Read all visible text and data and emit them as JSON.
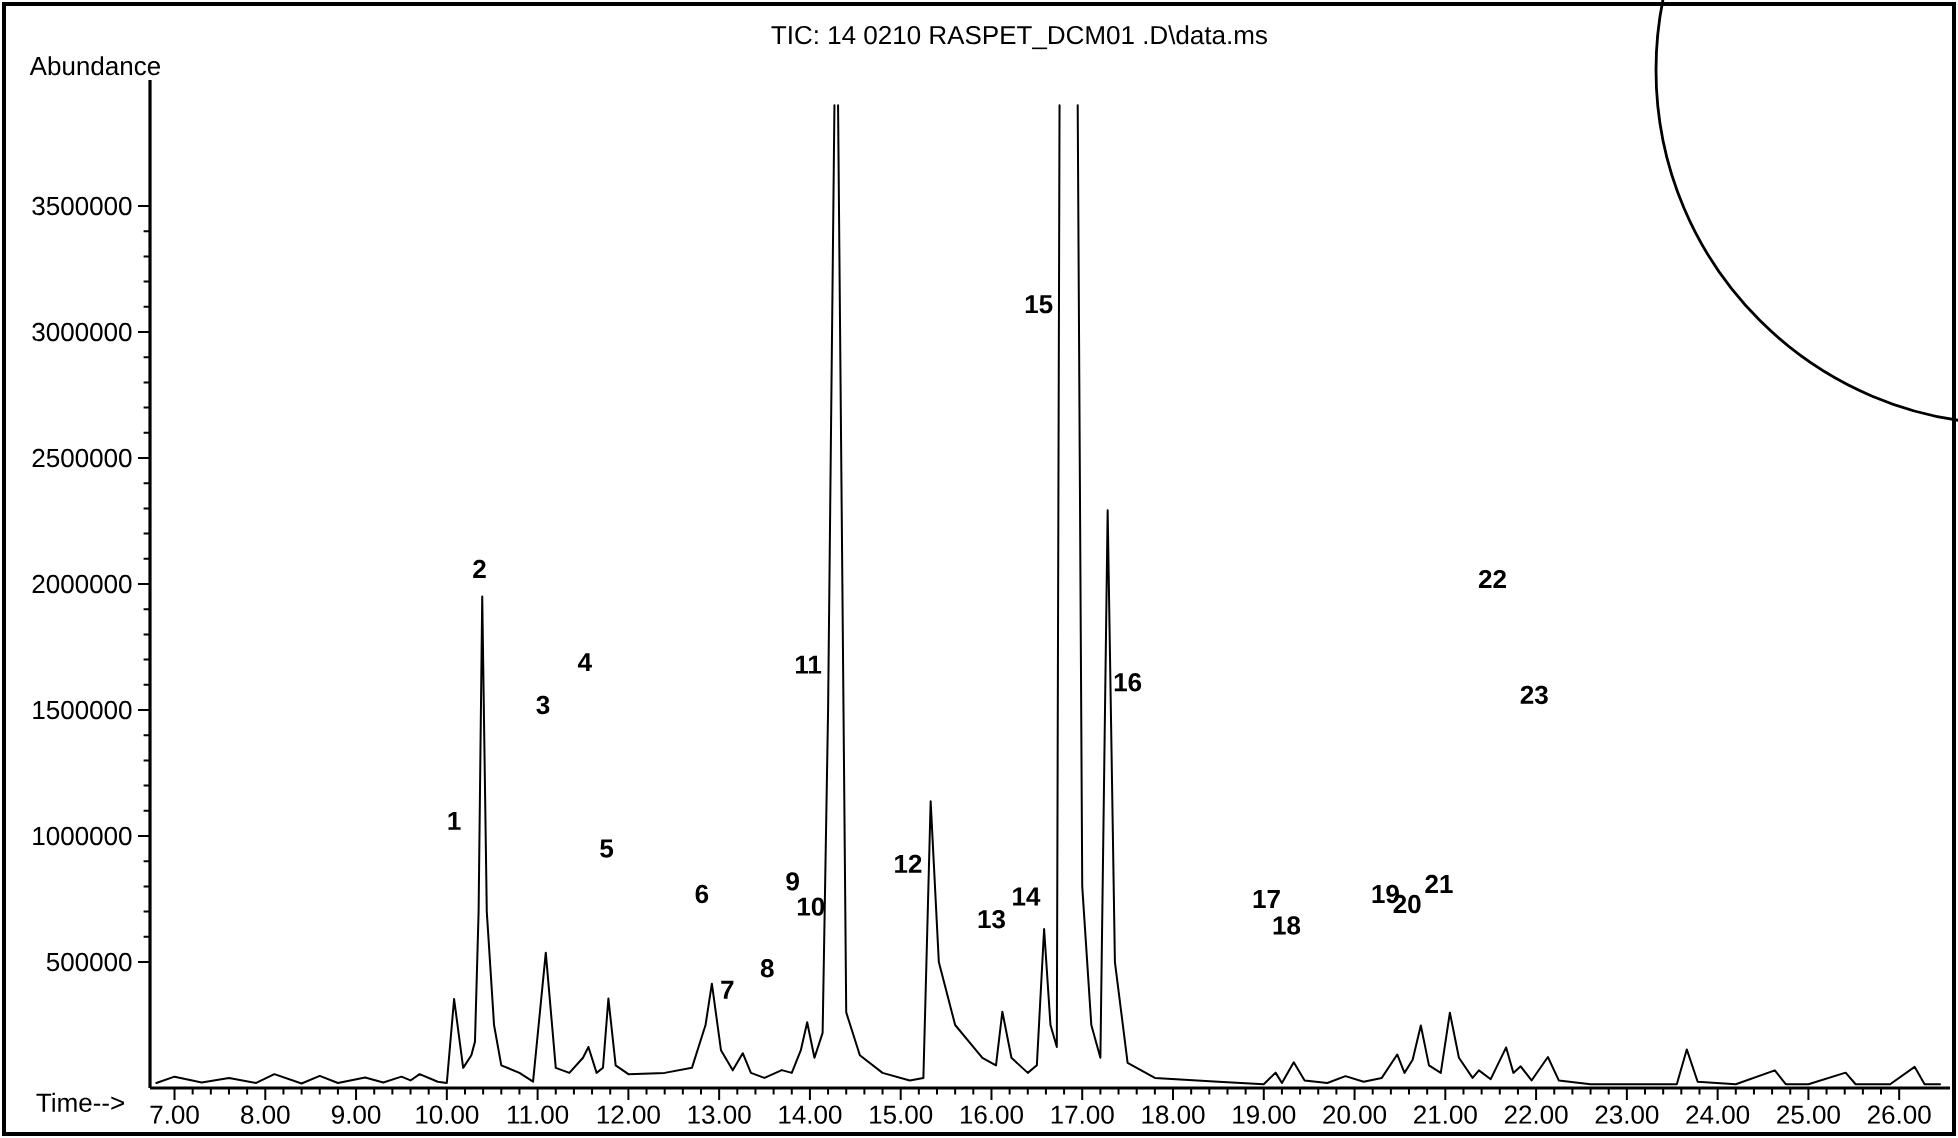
{
  "chart_data": {
    "type": "line",
    "title": "TIC: 14 0210 RASPET_DCM01 .D\\data.ms",
    "xlabel": "Time-->",
    "ylabel": "Abundance",
    "xlim": [
      6.73,
      26.56
    ],
    "ylim": [
      0,
      4000000
    ],
    "xticks": [
      {
        "value": 7,
        "label": "7.00"
      },
      {
        "value": 8,
        "label": "8.00"
      },
      {
        "value": 9,
        "label": "9.00"
      },
      {
        "value": 10,
        "label": "10.00"
      },
      {
        "value": 11,
        "label": "11.00"
      },
      {
        "value": 12,
        "label": "12.00"
      },
      {
        "value": 13,
        "label": "13.00"
      },
      {
        "value": 14,
        "label": "14.00"
      },
      {
        "value": 15,
        "label": "15.00"
      },
      {
        "value": 16,
        "label": "16.00"
      },
      {
        "value": 17,
        "label": "17.00"
      },
      {
        "value": 18,
        "label": "18.00"
      },
      {
        "value": 19,
        "label": "19.00"
      },
      {
        "value": 20,
        "label": "20.00"
      },
      {
        "value": 21,
        "label": "21.00"
      },
      {
        "value": 22,
        "label": "22.00"
      },
      {
        "value": 23,
        "label": "23.00"
      },
      {
        "value": 24,
        "label": "24.00"
      },
      {
        "value": 25,
        "label": "25.00"
      },
      {
        "value": 26,
        "label": "26.00"
      }
    ],
    "yticks": [
      500000,
      1000000,
      1500000,
      2000000,
      2500000,
      3000000,
      3500000
    ],
    "grid": false,
    "marker": "none",
    "line_style": "solid",
    "series": [
      {
        "color": "#000000",
        "x": [
          6.8,
          7.0,
          7.3,
          7.6,
          7.9,
          8.1,
          8.4,
          8.6,
          8.8,
          9.1,
          9.3,
          9.5,
          9.6,
          9.7,
          9.9,
          10.0,
          10.08,
          10.18,
          10.27,
          10.31,
          10.35,
          10.39,
          10.44,
          10.52,
          10.6,
          10.8,
          10.95,
          11.09,
          11.2,
          11.35,
          11.5,
          11.56,
          11.65,
          11.72,
          11.78,
          11.86,
          12.0,
          12.4,
          12.7,
          12.85,
          12.92,
          13.02,
          13.15,
          13.26,
          13.35,
          13.5,
          13.69,
          13.8,
          13.9,
          13.97,
          14.05,
          14.14,
          14.2,
          14.27,
          14.29,
          14.31,
          14.4,
          14.55,
          14.8,
          15.1,
          15.25,
          15.33,
          15.42,
          15.6,
          15.9,
          16.05,
          16.12,
          16.22,
          16.4,
          16.5,
          16.58,
          16.65,
          16.72,
          16.75,
          16.85,
          16.95,
          17.0,
          17.1,
          17.2,
          17.28,
          17.36,
          17.5,
          17.8,
          18.5,
          19.0,
          19.13,
          19.2,
          19.33,
          19.45,
          19.7,
          19.9,
          20.1,
          20.3,
          20.47,
          20.55,
          20.64,
          20.73,
          20.82,
          20.95,
          21.05,
          21.15,
          21.3,
          21.37,
          21.5,
          21.67,
          21.75,
          21.83,
          21.95,
          22.13,
          22.25,
          22.6,
          23.2,
          23.55,
          23.66,
          23.78,
          24.2,
          24.63,
          24.75,
          25.0,
          25.41,
          25.52,
          25.9,
          26.17,
          26.28,
          26.45
        ],
        "values": [
          20000,
          45000,
          22000,
          40000,
          20000,
          55000,
          18000,
          48000,
          20000,
          42000,
          22000,
          45000,
          30000,
          55000,
          25000,
          20000,
          353000,
          80000,
          130000,
          184000,
          700000,
          1950000,
          700000,
          250000,
          90000,
          60000,
          25000,
          537000,
          80000,
          60000,
          120000,
          163000,
          60000,
          80000,
          355000,
          90000,
          55000,
          60000,
          80000,
          250000,
          414000,
          150000,
          70000,
          138000,
          60000,
          40000,
          71000,
          60000,
          150000,
          261000,
          120000,
          219000,
          1500000,
          3900000,
          null,
          3900000,
          300000,
          130000,
          60000,
          30000,
          40000,
          1138000,
          500000,
          250000,
          120000,
          90000,
          303000,
          120000,
          60000,
          90000,
          631000,
          250000,
          163000,
          3900000,
          null,
          3900000,
          800000,
          250000,
          120000,
          2293000,
          500000,
          100000,
          40000,
          25000,
          15000,
          61000,
          20000,
          102000,
          30000,
          20000,
          47000,
          25000,
          40000,
          133000,
          60000,
          112000,
          248000,
          90000,
          60000,
          299000,
          120000,
          40000,
          70000,
          35000,
          161000,
          60000,
          86000,
          30000,
          123000,
          30000,
          15000,
          15000,
          15000,
          153000,
          25000,
          15000,
          70000,
          15000,
          15000,
          61000,
          15000,
          15000,
          84000,
          15000,
          15000
        ]
      }
    ],
    "annotations": [
      "1",
      "2",
      "3",
      "4",
      "5",
      "6",
      "7",
      "8",
      "9",
      "10",
      "11",
      "12",
      "13",
      "14",
      "15",
      "16",
      "17",
      "18",
      "19",
      "20",
      "21",
      "22",
      "23"
    ]
  }
}
